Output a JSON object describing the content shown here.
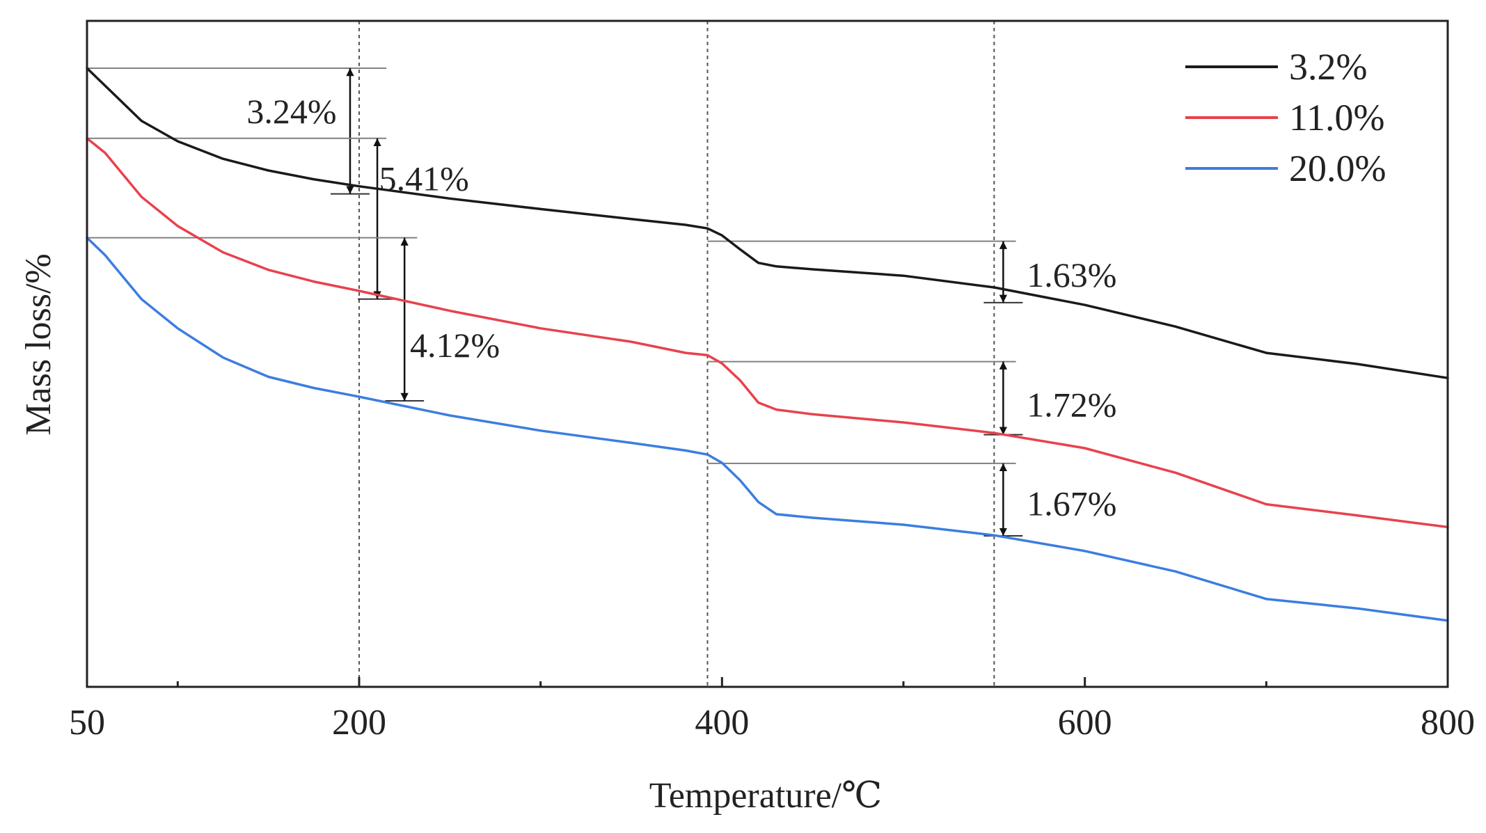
{
  "chart_data": {
    "type": "line",
    "title": "",
    "xlabel": "Temperature/℃",
    "ylabel": "Mass loss/%",
    "xlim": [
      50,
      800
    ],
    "ylim": [
      0,
      100
    ],
    "xticks": [
      50,
      200,
      400,
      600,
      800
    ],
    "xticks_minor": [
      100,
      300,
      500,
      700
    ],
    "yticks": [],
    "grid": false,
    "legend": "top-right",
    "vlines": [
      200,
      392,
      550
    ],
    "series": [
      {
        "name": "3.2%",
        "color": "#1a1a1a",
        "x": [
          50,
          60,
          80,
          100,
          125,
          150,
          175,
          200,
          250,
          300,
          350,
          380,
          392,
          400,
          410,
          420,
          430,
          450,
          500,
          550,
          600,
          650,
          700,
          750,
          800
        ],
        "y": [
          100,
          97,
          91,
          87.5,
          84.5,
          82.5,
          81,
          79.8,
          77.7,
          75.9,
          74.2,
          73.2,
          72.6,
          71.4,
          69,
          66.7,
          66.1,
          65.6,
          64.5,
          62.5,
          59.5,
          55.8,
          51.3,
          49.4,
          47
        ]
      },
      {
        "name": "11.0%",
        "color": "#e8424d",
        "x": [
          50,
          60,
          80,
          100,
          125,
          150,
          175,
          200,
          250,
          300,
          350,
          380,
          392,
          400,
          410,
          420,
          430,
          450,
          500,
          550,
          600,
          650,
          700,
          750,
          800
        ],
        "y": [
          88,
          85.5,
          78,
          73,
          68.5,
          65.5,
          63.5,
          61.9,
          58.5,
          55.5,
          53.2,
          51.3,
          50.9,
          49.5,
          46.6,
          42.8,
          41.6,
          40.8,
          39.4,
          37.6,
          35,
          30.8,
          25.4,
          23.5,
          21.5
        ]
      },
      {
        "name": "20.0%",
        "color": "#3c7de0",
        "x": [
          50,
          60,
          80,
          100,
          125,
          150,
          175,
          200,
          250,
          300,
          350,
          380,
          392,
          400,
          410,
          420,
          430,
          450,
          500,
          550,
          600,
          650,
          700,
          750,
          800
        ],
        "y": [
          71,
          68,
          60.5,
          55.5,
          50.5,
          47.2,
          45.3,
          43.8,
          40.6,
          38,
          35.9,
          34.6,
          33.9,
          32.5,
          29.5,
          25.8,
          23.7,
          23.1,
          21.9,
          20.1,
          17.4,
          13.9,
          9.2,
          7.6,
          5.5
        ]
      }
    ],
    "annotations": [
      {
        "label": "3.24%",
        "x": 195,
        "y_top": 100,
        "y_bottom": 78.5,
        "label_x": 138,
        "label_y": 92.5,
        "line_from": 50,
        "line_to": 215
      },
      {
        "label": "5.41%",
        "x": 210,
        "y_top": 88,
        "y_bottom": 60.5,
        "label_x": 211,
        "label_y": 81,
        "line_from": 50,
        "line_to": 215
      },
      {
        "label": "4.12%",
        "x": 225,
        "y_top": 71,
        "y_bottom": 43.1,
        "label_x": 228,
        "label_y": 52.5,
        "line_from": 50,
        "line_to": 232
      },
      {
        "label": "1.63%",
        "x": 555,
        "y_top": 70.4,
        "y_bottom": 59.9,
        "label_x": 568,
        "label_y": 64.5,
        "line_from": 392,
        "line_to": 562
      },
      {
        "label": "1.72%",
        "x": 555,
        "y_top": 49.8,
        "y_bottom": 37.3,
        "label_x": 568,
        "label_y": 42.3,
        "line_from": 392,
        "line_to": 562
      },
      {
        "label": "1.67%",
        "x": 555,
        "y_top": 32.4,
        "y_bottom": 20,
        "label_x": 568,
        "label_y": 25.4,
        "line_from": 392,
        "line_to": 562
      }
    ]
  }
}
